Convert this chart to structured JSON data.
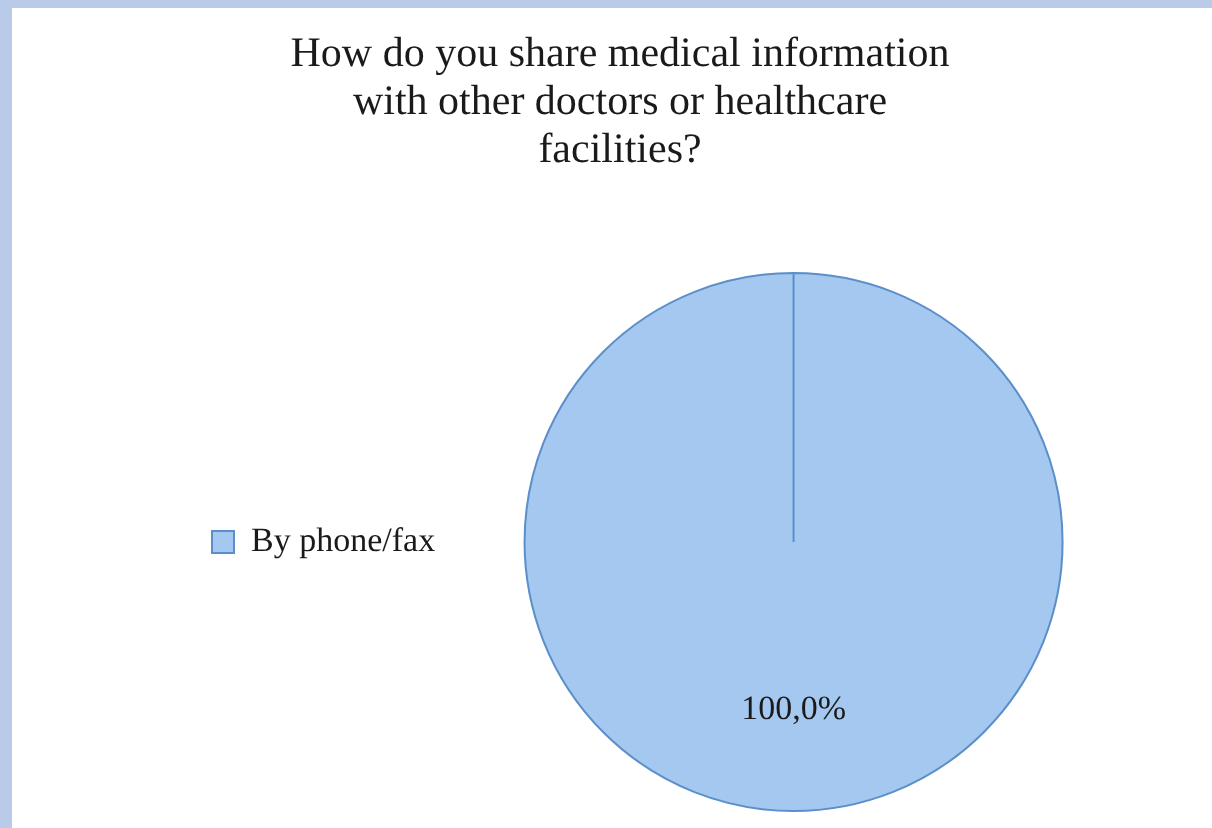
{
  "chart_data": {
    "type": "pie",
    "title": "How do you share medical information with other doctors or healthcare facilities?",
    "categories": [
      "By phone/fax"
    ],
    "values": [
      100
    ],
    "colors": [
      "#a4c8ef"
    ],
    "value_labels": [
      "100,0%"
    ],
    "legend": "left"
  }
}
